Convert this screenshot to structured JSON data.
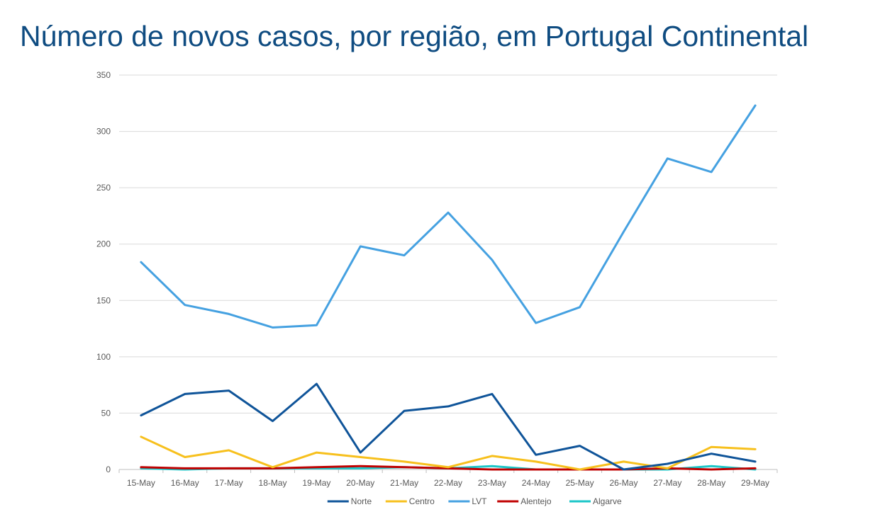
{
  "title": "Número de novos casos, por região, em Portugal Continental",
  "chart_data": {
    "type": "line",
    "title": "Número de novos casos, por região, em Portugal Continental",
    "xlabel": "",
    "ylabel": "",
    "ylim": [
      0,
      350
    ],
    "yticks": [
      0,
      50,
      100,
      150,
      200,
      250,
      300,
      350
    ],
    "grid": true,
    "legend_position": "bottom",
    "categories": [
      "15-May",
      "16-May",
      "17-May",
      "18-May",
      "19-May",
      "20-May",
      "21-May",
      "22-May",
      "23-May",
      "24-May",
      "25-May",
      "26-May",
      "27-May",
      "28-May",
      "29-May"
    ],
    "series": [
      {
        "name": "Norte",
        "color": "#0f5499",
        "values": [
          48,
          67,
          70,
          43,
          76,
          15,
          52,
          56,
          67,
          13,
          21,
          0,
          5,
          14,
          7
        ]
      },
      {
        "name": "Centro",
        "color": "#f7c01d",
        "values": [
          29,
          11,
          17,
          2,
          15,
          11,
          7,
          2,
          12,
          7,
          0,
          7,
          1,
          20,
          18
        ]
      },
      {
        "name": "LVT",
        "color": "#45a1e1",
        "values": [
          184,
          146,
          138,
          126,
          128,
          198,
          190,
          228,
          186,
          130,
          144,
          211,
          276,
          264,
          323
        ]
      },
      {
        "name": "Alentejo",
        "color": "#c00000",
        "values": [
          2,
          1,
          1,
          1,
          2,
          3,
          2,
          1,
          0,
          0,
          0,
          0,
          1,
          0,
          1
        ]
      },
      {
        "name": "Algarve",
        "color": "#1bc6c8",
        "values": [
          1,
          0,
          1,
          1,
          1,
          1,
          2,
          1,
          3,
          0,
          0,
          0,
          0,
          3,
          0
        ]
      }
    ]
  }
}
